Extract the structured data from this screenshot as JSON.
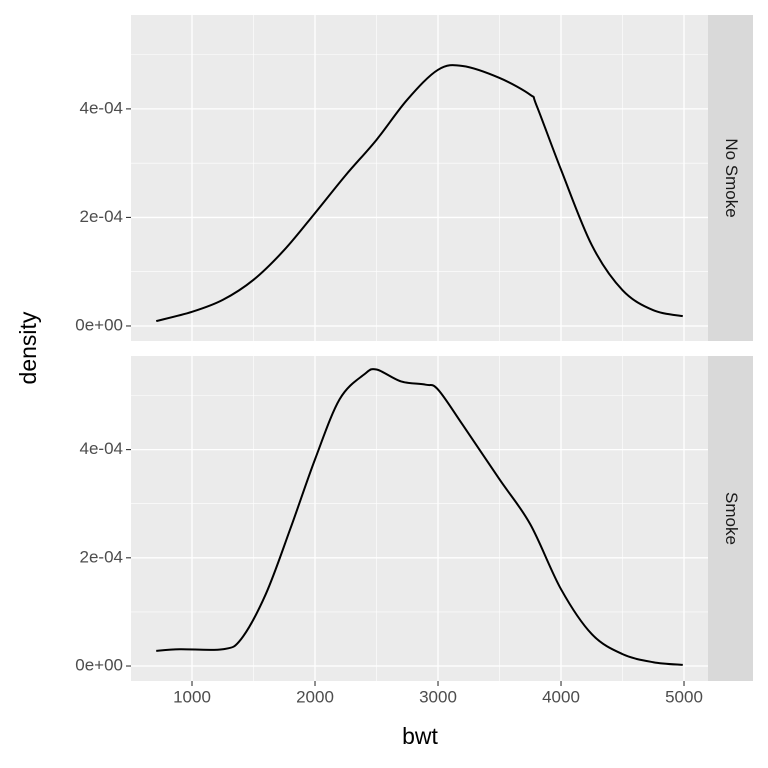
{
  "chart_data": {
    "type": "line",
    "facets": true,
    "x_label": "bwt",
    "y_label": "density",
    "xlim": [
      504,
      5195
    ],
    "xticks": [
      1000,
      2000,
      3000,
      4000,
      5000
    ],
    "ylim": [
      -2.77e-05,
      0.000573
    ],
    "yticks": [
      {
        "value": 0,
        "label": "0e+00"
      },
      {
        "value": 0.0002,
        "label": "2e-04"
      },
      {
        "value": 0.0004,
        "label": "4e-04"
      }
    ],
    "grid": true,
    "series": [
      {
        "name": "No Smoke",
        "color": "#000000",
        "x": [
          709,
          1000,
          1250,
          1500,
          1750,
          2000,
          2250,
          2500,
          2750,
          3000,
          3200,
          3500,
          3750,
          3800,
          4000,
          4250,
          4500,
          4750,
          4990
        ],
        "values": [
          9e-06,
          2.6e-05,
          4.8e-05,
          8.5e-05,
          0.00014,
          0.000208,
          0.000278,
          0.000343,
          0.000417,
          0.000472,
          0.000479,
          0.000457,
          0.000426,
          0.000407,
          0.000288,
          0.000149,
          6.6e-05,
          2.9e-05,
          1.8e-05
        ]
      },
      {
        "name": "Smoke",
        "color": "#000000",
        "x": [
          709,
          900,
          1250,
          1400,
          1600,
          1800,
          2000,
          2200,
          2400,
          2500,
          2700,
          2900,
          3000,
          3200,
          3500,
          3750,
          4000,
          4250,
          4500,
          4750,
          4990
        ],
        "values": [
          2.8e-05,
          3.1e-05,
          3.1e-05,
          5e-05,
          0.000133,
          0.000254,
          0.000382,
          0.000493,
          0.000539,
          0.000548,
          0.000526,
          0.00052,
          0.000511,
          0.000446,
          0.000345,
          0.000262,
          0.000142,
          5.9e-05,
          2.2e-05,
          7e-06,
          2e-06
        ]
      }
    ]
  }
}
